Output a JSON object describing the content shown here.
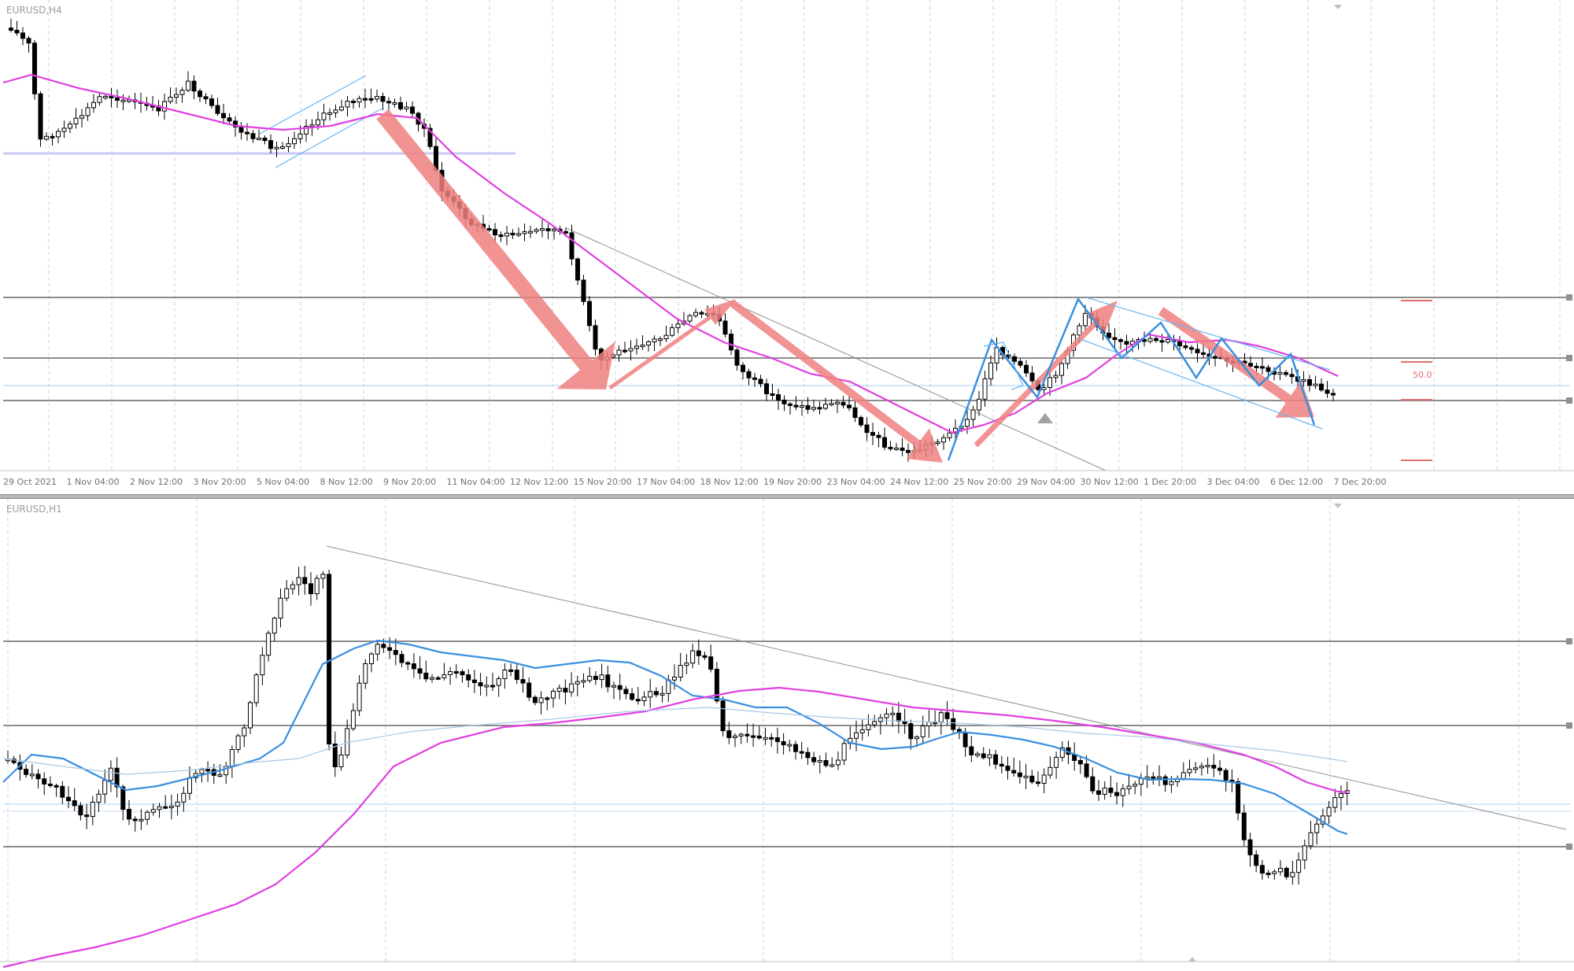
{
  "top_chart": {
    "symbol_label": "EURUSD,H4",
    "x_labels": [
      "29 Oct 2021",
      "1 Nov 04:00",
      "2 Nov 12:00",
      "3 Nov 20:00",
      "5 Nov 04:00",
      "8 Nov 12:00",
      "9 Nov 20:00",
      "11 Nov 04:00",
      "12 Nov 12:00",
      "15 Nov 20:00",
      "17 Nov 04:00",
      "18 Nov 12:00",
      "19 Nov 20:00",
      "23 Nov 04:00",
      "24 Nov 12:00",
      "25 Nov 20:00",
      "29 Nov 04:00",
      "30 Nov 12:00",
      "1 Dec 20:00",
      "3 Dec 04:00",
      "6 Dec 12:00",
      "7 Dec 20:00"
    ],
    "fib_level_label": "50.0",
    "colors": {
      "ma": "#e040e0",
      "arrow": "#f08080",
      "channel": "#3a8fe0",
      "candle": "#000000"
    }
  },
  "bottom_chart": {
    "symbol_label": "EURUSD,H1",
    "x_labels": [
      "",
      "",
      "",
      "",
      "",
      "",
      "",
      "",
      "",
      "",
      "",
      "",
      "",
      "",
      "",
      "",
      "",
      "",
      "",
      "",
      "",
      "",
      "",
      "",
      "",
      ""
    ],
    "colors": {
      "ma_slow": "#e040e0",
      "ma_fast": "#3a8fe0",
      "ma_long": "#a8c8e8"
    }
  }
}
